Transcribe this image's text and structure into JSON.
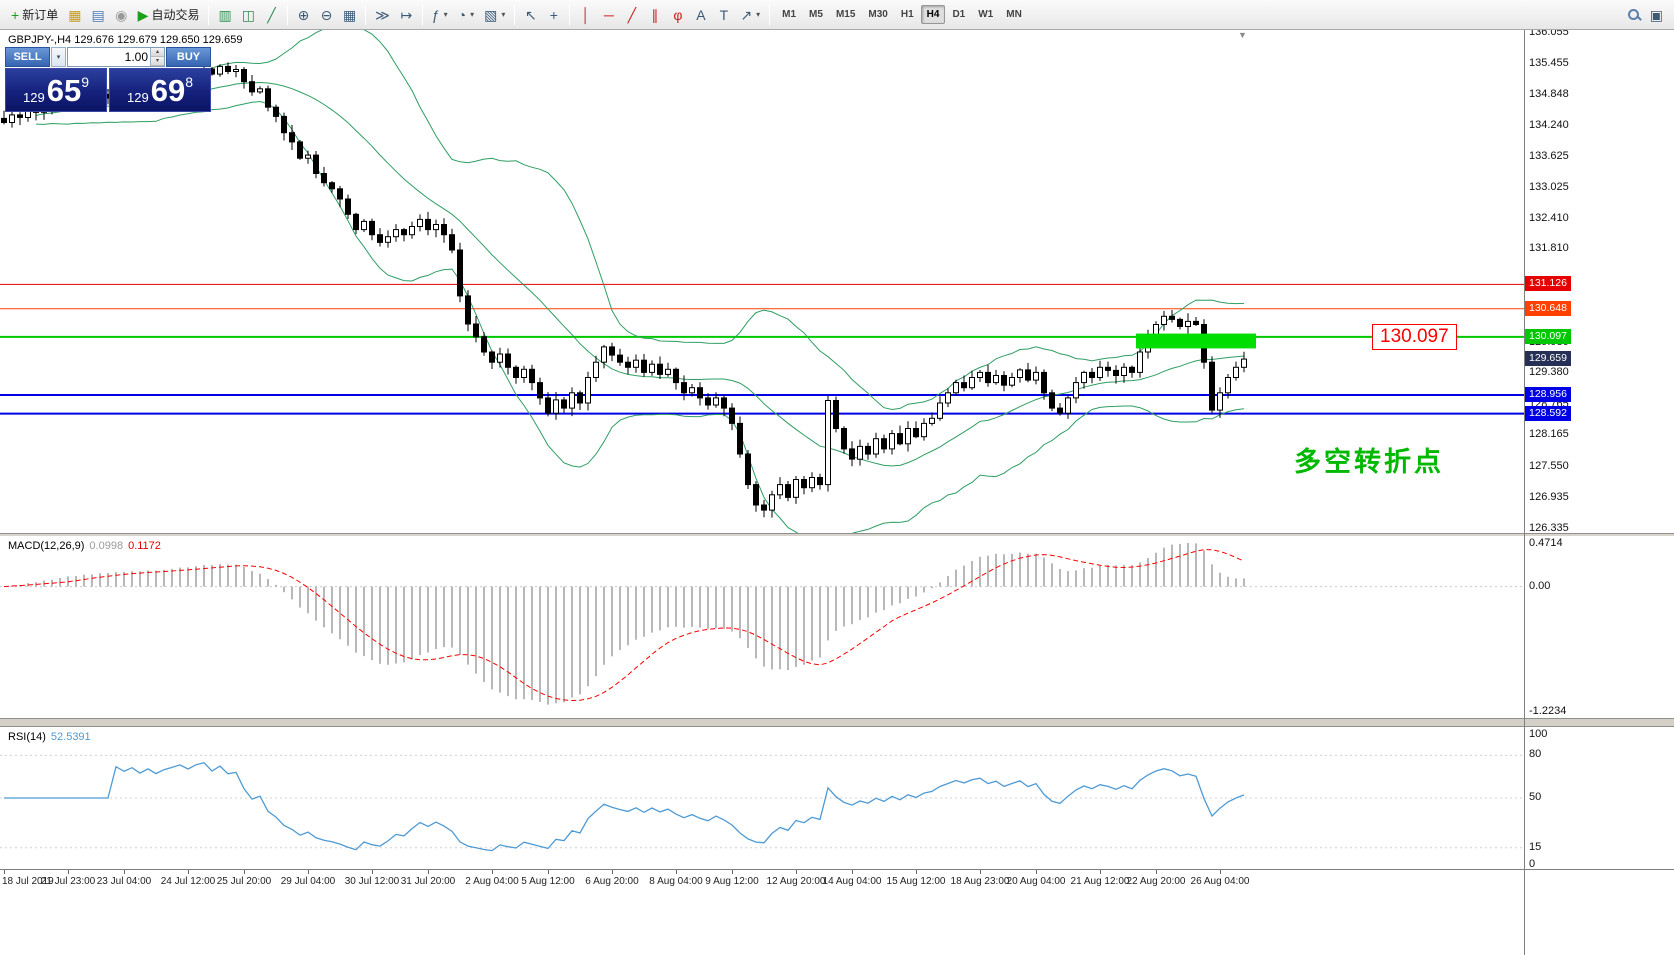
{
  "symbol_header": "GBPJPY-,H4  129.676 129.679 129.650 129.659",
  "callout_text": "130.097",
  "annotation_text": "多空转折点",
  "icons": {
    "shift_marker": "▼",
    "chevron_down": "▾",
    "spin_up": "▴",
    "spin_down": "▾"
  },
  "trade_panel": {
    "sell_label": "SELL",
    "buy_label": "BUY",
    "volume": "1.00",
    "sell_price": {
      "prefix": "129",
      "big": "65",
      "sup": "9"
    },
    "buy_price": {
      "prefix": "129",
      "big": "69",
      "sup": "8"
    }
  },
  "toolbar": {
    "groups": [
      {
        "name": "orders",
        "buttons": [
          {
            "name": "new-order-button",
            "glyph": "+",
            "glyph_color": "#18a018",
            "label": "新订单"
          },
          {
            "name": "chart-profiles-button",
            "glyph": "▦",
            "glyph_color": "#c79a16"
          },
          {
            "name": "data-window-button",
            "glyph": "▤",
            "glyph_color": "#4a7ebb"
          },
          {
            "name": "community-button",
            "glyph": "◉",
            "glyph_color": "#999999"
          },
          {
            "name": "auto-trading-button",
            "glyph": "▶",
            "glyph_color": "#18a018",
            "label": "自动交易"
          }
        ]
      },
      {
        "name": "chart-types",
        "buttons": [
          {
            "name": "bar-chart-button",
            "glyph": "▥",
            "glyph_color": "#2f8f4e"
          },
          {
            "name": "candlestick-chart-button",
            "glyph": "◫",
            "glyph_color": "#2f8f4e"
          },
          {
            "name": "line-chart-button",
            "glyph": "╱",
            "glyph_color": "#2f8f4e"
          }
        ]
      },
      {
        "name": "zoom",
        "buttons": [
          {
            "name": "zoom-in-button",
            "glyph": "⊕"
          },
          {
            "name": "zoom-out-button",
            "glyph": "⊖"
          },
          {
            "name": "tile-windows-button",
            "glyph": "▦"
          }
        ]
      },
      {
        "name": "scroll",
        "buttons": [
          {
            "name": "auto-scroll-button",
            "glyph": "≫"
          },
          {
            "name": "chart-shift-button",
            "glyph": "↦"
          }
        ]
      },
      {
        "name": "panels",
        "buttons": [
          {
            "name": "indicators-button",
            "glyph": "ƒ",
            "dropdown": true
          },
          {
            "name": "periods-button",
            "glyph": "◔",
            "dropdown": true
          },
          {
            "name": "templates-button",
            "glyph": "▧",
            "dropdown": true
          }
        ]
      },
      {
        "name": "pointer",
        "buttons": [
          {
            "name": "cursor-button",
            "glyph": "↖"
          },
          {
            "name": "crosshair-button",
            "glyph": "+"
          }
        ]
      },
      {
        "name": "objects",
        "buttons": [
          {
            "name": "vertical-line-button",
            "glyph": "│",
            "glyph_color": "#cc2222"
          },
          {
            "name": "horizontal-line-button",
            "glyph": "─",
            "glyph_color": "#cc2222"
          },
          {
            "name": "trendline-button",
            "glyph": "╱",
            "glyph_color": "#cc2222"
          },
          {
            "name": "channel-button",
            "glyph": "∥",
            "glyph_color": "#cc2222"
          },
          {
            "name": "fibonacci-button",
            "glyph": "φ",
            "glyph_color": "#cc2222"
          },
          {
            "name": "text-button",
            "glyph": "A"
          },
          {
            "name": "label-button",
            "glyph": "T"
          },
          {
            "name": "arrows-button",
            "glyph": "↗",
            "dropdown": true
          }
        ]
      }
    ],
    "timeframes": [
      "M1",
      "M5",
      "M15",
      "M30",
      "H1",
      "H4",
      "D1",
      "W1",
      "MN"
    ],
    "active_timeframe": "H4",
    "right_buttons": [
      {
        "name": "search-button",
        "glyph": "magnifier"
      },
      {
        "name": "layout-button",
        "glyph": "▣"
      }
    ]
  },
  "price_axis": {
    "labels": [
      "136.055",
      "135.455",
      "134.848",
      "134.240",
      "133.625",
      "133.025",
      "132.410",
      "131.810",
      "129.980",
      "129.380",
      "128.765",
      "128.165",
      "127.550",
      "126.935",
      "126.335"
    ],
    "tags": [
      {
        "name": "level-tag-131126",
        "text": "131.126",
        "bg": "#e60000"
      },
      {
        "name": "level-tag-130648",
        "text": "130.648",
        "bg": "#ff4000"
      },
      {
        "name": "level-tag-130097",
        "text": "130.097",
        "bg": "#00c800"
      },
      {
        "name": "current-price-tag",
        "text": "129.659",
        "bg": "#262f55"
      },
      {
        "name": "level-tag-128956",
        "text": "128.956",
        "bg": "#0000e6"
      },
      {
        "name": "level-tag-128592",
        "text": "128.592",
        "bg": "#0000e6"
      }
    ]
  },
  "macd_panel": {
    "label": "MACD(12,26,9)",
    "value_main": "0.0998",
    "value_signal": "0.1172",
    "axis": [
      "0.4714",
      "0.00",
      "-1.2234"
    ]
  },
  "rsi_panel": {
    "label": "RSI(14)",
    "value": "52.5391",
    "axis": [
      "100",
      "80",
      "50",
      "15",
      "0"
    ]
  },
  "chart_data": {
    "type": "candlestick",
    "symbol": "GBPJPY-",
    "timeframe": "H4",
    "ylim": [
      126.335,
      136.055
    ],
    "price_axis_step": 0.6,
    "closes": [
      134.3,
      134.45,
      134.4,
      134.55,
      134.5,
      134.62,
      134.58,
      134.7,
      134.75,
      134.66,
      134.8,
      134.72,
      134.85,
      134.78,
      134.9,
      134.84,
      134.95,
      134.88,
      135.0,
      134.94,
      135.05,
      135.12,
      135.2,
      135.15,
      135.28,
      135.35,
      135.25,
      135.4,
      135.3,
      135.34,
      135.1,
      134.9,
      134.96,
      134.6,
      134.42,
      134.1,
      133.92,
      133.6,
      133.66,
      133.3,
      133.12,
      133.0,
      132.8,
      132.5,
      132.2,
      132.36,
      132.1,
      131.95,
      132.06,
      132.2,
      132.1,
      132.26,
      132.4,
      132.2,
      132.3,
      132.1,
      131.8,
      130.9,
      130.35,
      130.1,
      129.8,
      129.6,
      129.76,
      129.5,
      129.3,
      129.46,
      129.2,
      128.9,
      128.6,
      128.86,
      128.7,
      129.0,
      128.8,
      129.3,
      129.6,
      129.9,
      129.74,
      129.6,
      129.5,
      129.64,
      129.4,
      129.56,
      129.36,
      129.46,
      129.2,
      129.0,
      129.1,
      128.9,
      128.76,
      128.9,
      128.7,
      128.4,
      127.8,
      127.2,
      126.8,
      126.7,
      127.0,
      127.2,
      126.95,
      127.3,
      127.14,
      127.34,
      127.2,
      128.85,
      128.3,
      127.9,
      127.7,
      127.95,
      127.8,
      128.1,
      127.9,
      128.2,
      128.0,
      128.3,
      128.14,
      128.4,
      128.5,
      128.8,
      129.0,
      129.2,
      129.1,
      129.3,
      129.4,
      129.2,
      129.34,
      129.15,
      129.3,
      129.45,
      129.25,
      129.4,
      129.0,
      128.7,
      128.6,
      128.9,
      129.2,
      129.4,
      129.3,
      129.5,
      129.44,
      129.34,
      129.5,
      129.4,
      129.8,
      130.1,
      130.34,
      130.5,
      130.44,
      130.3,
      130.4,
      130.34,
      129.6,
      128.66,
      129.0,
      129.3,
      129.5,
      129.66
    ],
    "x_tick_labels": [
      "18 Jul 2019",
      "21 Jul 23:00",
      "23 Jul 04:00",
      "24 Jul 12:00",
      "25 Jul 20:00",
      "29 Jul 04:00",
      "30 Jul 12:00",
      "31 Jul 20:00",
      "2 Aug 04:00",
      "5 Aug 12:00",
      "6 Aug 20:00",
      "8 Aug 04:00",
      "9 Aug 12:00",
      "12 Aug 20:00",
      "14 Aug 04:00",
      "15 Aug 12:00",
      "18 Aug 23:00",
      "20 Aug 04:00",
      "21 Aug 12:00",
      "22 Aug 20:00",
      "26 Aug 04:00"
    ],
    "overlays": {
      "bollinger_bands": {
        "period": 20,
        "deviation": 2,
        "color": "#2e9e63"
      },
      "horizontal_lines": [
        {
          "price": 131.126,
          "color": "#e60000",
          "width": 1
        },
        {
          "price": 130.648,
          "color": "#ff4000",
          "width": 1
        },
        {
          "price": 130.097,
          "color": "#00c800",
          "width": 2
        },
        {
          "price": 128.956,
          "color": "#0000e6",
          "width": 2
        },
        {
          "price": 128.592,
          "color": "#0000e6",
          "width": 2
        }
      ],
      "highlight_rect": {
        "price_top": 130.16,
        "price_bottom": 129.87,
        "start_index": 142,
        "end_index": 157,
        "color": "#00dd00"
      },
      "current_price": 129.659
    },
    "indicators": [
      {
        "name": "MACD",
        "params": "12,26,9",
        "values": [
          0.0998,
          0.1172
        ],
        "ylim": [
          -1.2234,
          0.4714
        ],
        "histogram_color": "#b8b8b8",
        "signal_color": "#ff0000"
      },
      {
        "name": "RSI",
        "params": "14",
        "value": 52.5391,
        "levels": [
          100,
          80,
          50,
          15,
          0
        ],
        "color": "#4e9ad4"
      }
    ]
  }
}
